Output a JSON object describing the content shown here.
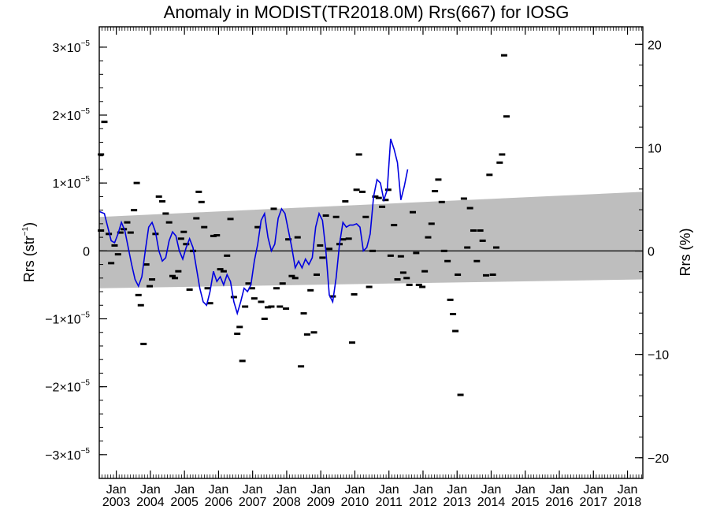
{
  "chart_data": {
    "type": "line",
    "title": "Anomaly in MODIST(TR2018.0M) Rrs(667) for IOSG",
    "ylabel_left": "Rrs (str",
    "ylabel_left_sup": "−1",
    "ylabel_left_close": ")",
    "ylabel_right": "Rrs (%)",
    "x_range": [
      2002.5,
      2018.45
    ],
    "ylim_left": [
      -3.35e-05,
      3.3e-05
    ],
    "ylim_right_percent": [
      -22.0,
      21.7
    ],
    "left_ticks": [
      {
        "value": 3e-05,
        "base": "3×10",
        "exp": "−5"
      },
      {
        "value": 2e-05,
        "base": "2×10",
        "exp": "−5"
      },
      {
        "value": 1e-05,
        "base": "1×10",
        "exp": "−5"
      },
      {
        "value": 0,
        "base": "0",
        "exp": ""
      },
      {
        "value": -1e-05,
        "base": "−1×10",
        "exp": "−5"
      },
      {
        "value": -2e-05,
        "base": "−2×10",
        "exp": "−5"
      },
      {
        "value": -3e-05,
        "base": "−3×10",
        "exp": "−5"
      }
    ],
    "right_ticks": [
      {
        "value": 20,
        "label": "20"
      },
      {
        "value": 10,
        "label": "10"
      },
      {
        "value": 0,
        "label": "0"
      },
      {
        "value": -10,
        "label": "−10"
      },
      {
        "value": -20,
        "label": "−20"
      }
    ],
    "x_ticks": [
      {
        "value": 2003,
        "month": "Jan",
        "year": "2003"
      },
      {
        "value": 2004,
        "month": "Jan",
        "year": "2004"
      },
      {
        "value": 2005,
        "month": "Jan",
        "year": "2005"
      },
      {
        "value": 2006,
        "month": "Jan",
        "year": "2006"
      },
      {
        "value": 2007,
        "month": "Jan",
        "year": "2007"
      },
      {
        "value": 2008,
        "month": "Jan",
        "year": "2008"
      },
      {
        "value": 2009,
        "month": "Jan",
        "year": "2009"
      },
      {
        "value": 2010,
        "month": "Jan",
        "year": "2010"
      },
      {
        "value": 2011,
        "month": "Jan",
        "year": "2011"
      },
      {
        "value": 2012,
        "month": "Jan",
        "year": "2012"
      },
      {
        "value": 2013,
        "month": "Jan",
        "year": "2013"
      },
      {
        "value": 2014,
        "month": "Jan",
        "year": "2014"
      },
      {
        "value": 2015,
        "month": "Jan",
        "year": "2015"
      },
      {
        "value": 2016,
        "month": "Jan",
        "year": "2016"
      },
      {
        "value": 2017,
        "month": "Jan",
        "year": "2017"
      },
      {
        "value": 2018,
        "month": "Jan",
        "year": "2018"
      }
    ],
    "band": {
      "color": "#bebebe",
      "upper": [
        [
          2002.5,
          5e-06
        ],
        [
          2018.45,
          8.7e-06
        ]
      ],
      "lower": [
        [
          2002.5,
          -5.5e-06
        ],
        [
          2018.45,
          -4.2e-06
        ]
      ]
    },
    "zero_line": true,
    "series": [
      {
        "style": "markers",
        "color": "#000000",
        "points": [
          [
            2002.55,
            3e-06
          ],
          [
            2002.55,
            1.42e-05
          ],
          [
            2002.65,
            1.9e-05
          ],
          [
            2002.78,
            2.5e-06
          ],
          [
            2002.85,
            -1.8e-06
          ],
          [
            2002.95,
            8e-07
          ],
          [
            2003.05,
            -5e-07
          ],
          [
            2003.12,
            2.7e-06
          ],
          [
            2003.22,
            3.2e-06
          ],
          [
            2003.32,
            4.2e-06
          ],
          [
            2003.42,
            2.7e-06
          ],
          [
            2003.52,
            6e-06
          ],
          [
            2003.6,
            1e-05
          ],
          [
            2003.65,
            -6.5e-06
          ],
          [
            2003.72,
            -8e-06
          ],
          [
            2003.8,
            -1.37e-05
          ],
          [
            2003.88,
            -2e-06
          ],
          [
            2003.98,
            -5.2e-06
          ],
          [
            2004.05,
            -4.2e-06
          ],
          [
            2004.15,
            2.5e-06
          ],
          [
            2004.25,
            8e-06
          ],
          [
            2004.35,
            7.3e-06
          ],
          [
            2004.45,
            5.5e-06
          ],
          [
            2004.55,
            4.2e-06
          ],
          [
            2004.65,
            -3.7e-06
          ],
          [
            2004.72,
            -4e-06
          ],
          [
            2004.82,
            -3e-06
          ],
          [
            2004.9,
            1.8e-06
          ],
          [
            2004.98,
            2.8e-06
          ],
          [
            2005.05,
            1e-06
          ],
          [
            2005.15,
            -5.7e-06
          ],
          [
            2005.25,
            0.0
          ],
          [
            2005.35,
            4.8e-06
          ],
          [
            2005.42,
            8.7e-06
          ],
          [
            2005.5,
            7.2e-06
          ],
          [
            2005.58,
            3.5e-06
          ],
          [
            2005.68,
            -5.5e-06
          ],
          [
            2005.75,
            -7.7e-06
          ],
          [
            2005.85,
            2.2e-06
          ],
          [
            2005.95,
            2.3e-06
          ],
          [
            2006.05,
            -2.7e-06
          ],
          [
            2006.15,
            -3e-06
          ],
          [
            2006.25,
            -7e-07
          ],
          [
            2006.35,
            4.7e-06
          ],
          [
            2006.45,
            -6.8e-06
          ],
          [
            2006.55,
            -1.22e-05
          ],
          [
            2006.62,
            -1.12e-05
          ],
          [
            2006.7,
            -1.62e-05
          ],
          [
            2006.78,
            -8.2e-06
          ],
          [
            2006.88,
            -4.8e-06
          ],
          [
            2006.98,
            -5.5e-06
          ],
          [
            2007.05,
            -7e-06
          ],
          [
            2007.15,
            3.5e-06
          ],
          [
            2007.25,
            -7.5e-06
          ],
          [
            2007.35,
            -1e-05
          ],
          [
            2007.45,
            -8.3e-06
          ],
          [
            2007.55,
            -8.2e-06
          ],
          [
            2007.62,
            6.2e-06
          ],
          [
            2007.7,
            -5.5e-06
          ],
          [
            2007.8,
            -8.2e-06
          ],
          [
            2007.88,
            -4.8e-06
          ],
          [
            2007.98,
            -8.5e-06
          ],
          [
            2008.05,
            1.7e-06
          ],
          [
            2008.15,
            -3.7e-06
          ],
          [
            2008.25,
            -4e-06
          ],
          [
            2008.32,
            2e-06
          ],
          [
            2008.42,
            -1.7e-05
          ],
          [
            2008.5,
            -9.2e-06
          ],
          [
            2008.6,
            -1.23e-05
          ],
          [
            2008.7,
            -5.8e-06
          ],
          [
            2008.8,
            -1.2e-05
          ],
          [
            2008.88,
            -3.5e-06
          ],
          [
            2008.98,
            8e-07
          ],
          [
            2009.05,
            -1e-06
          ],
          [
            2009.15,
            5.2e-06
          ],
          [
            2009.25,
            3e-07
          ],
          [
            2009.35,
            -6.7e-06
          ],
          [
            2009.45,
            5e-06
          ],
          [
            2009.55,
            1e-06
          ],
          [
            2009.65,
            1.7e-06
          ],
          [
            2009.72,
            7.3e-06
          ],
          [
            2009.82,
            1.8e-06
          ],
          [
            2009.92,
            -1.35e-05
          ],
          [
            2009.98,
            -6.4e-06
          ],
          [
            2010.05,
            9e-06
          ],
          [
            2010.12,
            1.42e-05
          ],
          [
            2010.22,
            8.7e-06
          ],
          [
            2010.32,
            5e-06
          ],
          [
            2010.42,
            -5.3e-06
          ],
          [
            2010.52,
            0.0
          ],
          [
            2010.6,
            8e-06
          ],
          [
            2010.7,
            7.8e-06
          ],
          [
            2010.8,
            6.5e-06
          ],
          [
            2010.9,
            7.5e-06
          ],
          [
            2010.98,
            9e-06
          ],
          [
            2011.05,
            -7e-07
          ],
          [
            2011.15,
            3.8e-06
          ],
          [
            2011.25,
            -4.2e-06
          ],
          [
            2011.35,
            -8e-07
          ],
          [
            2011.42,
            -3.2e-06
          ],
          [
            2011.52,
            -4e-06
          ],
          [
            2011.6,
            -5e-06
          ],
          [
            2011.7,
            5.7e-06
          ],
          [
            2011.8,
            -3e-07
          ],
          [
            2011.88,
            -5e-06
          ],
          [
            2011.98,
            -5.3e-06
          ],
          [
            2012.05,
            -3e-06
          ],
          [
            2012.15,
            2e-06
          ],
          [
            2012.25,
            4e-06
          ],
          [
            2012.35,
            8.8e-06
          ],
          [
            2012.45,
            1.05e-05
          ],
          [
            2012.55,
            7.2e-06
          ],
          [
            2012.62,
            0.0
          ],
          [
            2012.72,
            -1.5e-06
          ],
          [
            2012.8,
            -7.2e-06
          ],
          [
            2012.88,
            -9.3e-06
          ],
          [
            2012.95,
            -1.18e-05
          ],
          [
            2013.02,
            -3.5e-06
          ],
          [
            2013.1,
            -2.12e-05
          ],
          [
            2013.2,
            7.7e-06
          ],
          [
            2013.3,
            5e-07
          ],
          [
            2013.38,
            6.3e-06
          ],
          [
            2013.48,
            3e-06
          ],
          [
            2013.58,
            -1.5e-06
          ],
          [
            2013.68,
            3e-06
          ],
          [
            2013.75,
            1.5e-06
          ],
          [
            2013.85,
            -3.6e-06
          ],
          [
            2013.95,
            1.12e-05
          ],
          [
            2014.05,
            -3.5e-06
          ],
          [
            2014.15,
            5e-07
          ],
          [
            2014.25,
            1.3e-05
          ],
          [
            2014.32,
            1.42e-05
          ],
          [
            2014.38,
            2.88e-05
          ],
          [
            2014.45,
            1.98e-05
          ]
        ]
      },
      {
        "style": "line",
        "color": "#0000e0",
        "points": [
          [
            2002.5,
            5.8e-06
          ],
          [
            2002.65,
            5.5e-06
          ],
          [
            2002.75,
            3.5e-06
          ],
          [
            2002.85,
            1.5e-06
          ],
          [
            2002.95,
            1.2e-06
          ],
          [
            2003.05,
            2.5e-06
          ],
          [
            2003.15,
            4.2e-06
          ],
          [
            2003.25,
            3e-06
          ],
          [
            2003.35,
            5e-07
          ],
          [
            2003.45,
            -2e-06
          ],
          [
            2003.55,
            -4.2e-06
          ],
          [
            2003.65,
            -5.2e-06
          ],
          [
            2003.75,
            -3.8e-06
          ],
          [
            2003.85,
            0.0
          ],
          [
            2003.95,
            3.5e-06
          ],
          [
            2004.05,
            4.2e-06
          ],
          [
            2004.15,
            2.8e-06
          ],
          [
            2004.25,
            0.0
          ],
          [
            2004.35,
            -1.5e-06
          ],
          [
            2004.45,
            -1e-06
          ],
          [
            2004.55,
            1.5e-06
          ],
          [
            2004.65,
            2.8e-06
          ],
          [
            2004.75,
            2.2e-06
          ],
          [
            2004.85,
            0.0
          ],
          [
            2004.95,
            -1.2e-06
          ],
          [
            2005.05,
            5e-07
          ],
          [
            2005.15,
            1.8e-06
          ],
          [
            2005.25,
            5e-07
          ],
          [
            2005.35,
            -2.5e-06
          ],
          [
            2005.45,
            -5.5e-06
          ],
          [
            2005.55,
            -7.5e-06
          ],
          [
            2005.65,
            -8e-06
          ],
          [
            2005.75,
            -6e-06
          ],
          [
            2005.85,
            -3e-06
          ],
          [
            2005.95,
            -4.5e-06
          ],
          [
            2006.05,
            -3.8e-06
          ],
          [
            2006.15,
            -5e-06
          ],
          [
            2006.25,
            -3.5e-06
          ],
          [
            2006.35,
            -4.5e-06
          ],
          [
            2006.45,
            -7.5e-06
          ],
          [
            2006.55,
            -9.2e-06
          ],
          [
            2006.65,
            -7.5e-06
          ],
          [
            2006.75,
            -5.5e-06
          ],
          [
            2006.85,
            -6e-06
          ],
          [
            2006.95,
            -5e-06
          ],
          [
            2007.05,
            -1.5e-06
          ],
          [
            2007.15,
            1e-06
          ],
          [
            2007.25,
            4.5e-06
          ],
          [
            2007.35,
            5.5e-06
          ],
          [
            2007.45,
            2e-06
          ],
          [
            2007.55,
            0.0
          ],
          [
            2007.65,
            1e-06
          ],
          [
            2007.75,
            4.8e-06
          ],
          [
            2007.85,
            6.2e-06
          ],
          [
            2007.95,
            5.5e-06
          ],
          [
            2008.05,
            3e-06
          ],
          [
            2008.15,
            5e-07
          ],
          [
            2008.25,
            -2.5e-06
          ],
          [
            2008.35,
            -1.5e-06
          ],
          [
            2008.45,
            -2.5e-06
          ],
          [
            2008.55,
            -1.2e-06
          ],
          [
            2008.65,
            -2e-06
          ],
          [
            2008.75,
            -1e-06
          ],
          [
            2008.85,
            3.5e-06
          ],
          [
            2008.95,
            5.5e-06
          ],
          [
            2009.05,
            4.5e-06
          ],
          [
            2009.15,
            0.0
          ],
          [
            2009.25,
            -6.5e-06
          ],
          [
            2009.35,
            -7.5e-06
          ],
          [
            2009.45,
            -4e-06
          ],
          [
            2009.55,
            1e-06
          ],
          [
            2009.65,
            4.2e-06
          ],
          [
            2009.75,
            3.5e-06
          ],
          [
            2009.85,
            3.8e-06
          ],
          [
            2009.95,
            3.8e-06
          ],
          [
            2010.05,
            4e-06
          ],
          [
            2010.15,
            3.5e-06
          ],
          [
            2010.25,
            0.0
          ],
          [
            2010.35,
            5e-07
          ],
          [
            2010.45,
            2.5e-06
          ],
          [
            2010.55,
            8e-06
          ],
          [
            2010.65,
            1.05e-05
          ],
          [
            2010.75,
            1e-05
          ],
          [
            2010.85,
            7.5e-06
          ],
          [
            2010.95,
            9e-06
          ],
          [
            2011.05,
            1.65e-05
          ],
          [
            2011.15,
            1.5e-05
          ],
          [
            2011.25,
            1.3e-05
          ],
          [
            2011.35,
            7.5e-06
          ],
          [
            2011.45,
            9.5e-06
          ],
          [
            2011.55,
            1.2e-05
          ]
        ]
      }
    ]
  }
}
